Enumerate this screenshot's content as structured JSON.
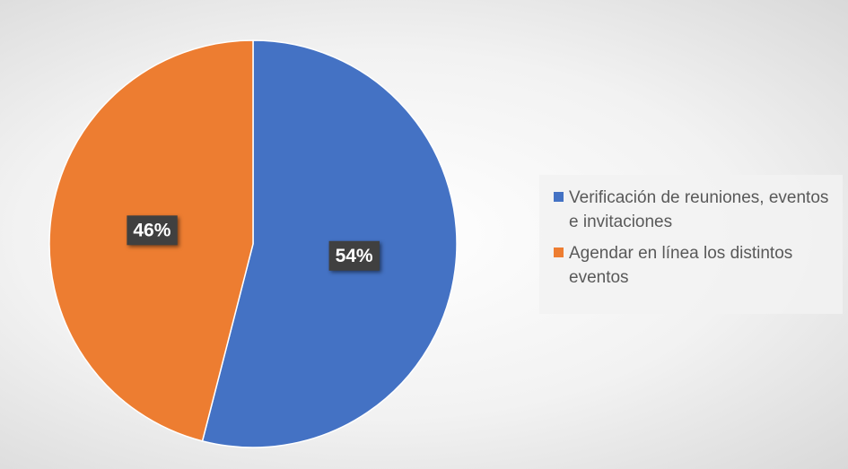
{
  "chart_data": {
    "type": "pie",
    "categories": [
      "Verificación de reuniones, eventos e invitaciones",
      "Agendar en línea los distintos eventos"
    ],
    "values": [
      54,
      46
    ],
    "value_labels": [
      "54%",
      "46%"
    ],
    "colors": [
      "#4472c4",
      "#ed7d31"
    ]
  }
}
